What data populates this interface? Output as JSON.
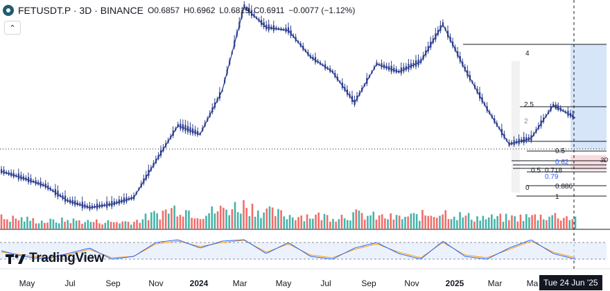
{
  "header": {
    "title": "FETUSDT.P · 3D · BINANCE",
    "open": "O0.6857",
    "high": "H0.6962",
    "low": "L0.6819",
    "close": "C0.6911",
    "change": "−0.0077 (−1.12%)",
    "symbol_icon": "fet-logo-icon",
    "collapse_icon": "chevron-up-icon"
  },
  "watermark": "TradingView",
  "crosshair_date": "Tue 24 Jun '25",
  "colors": {
    "price_line": "#2a3c8f",
    "volume_up": "#26a69a",
    "volume_down": "#ef5350",
    "stoch_k": "#2962ff",
    "stoch_d": "#ff9800",
    "fib_zone": "#bbd3f2",
    "pink_zone": "#f8d3d6"
  },
  "fib_labels": [
    {
      "text": "4",
      "level": 4
    },
    {
      "text": "2.5",
      "level": 2.5
    },
    {
      "text": "2",
      "level": 2
    },
    {
      "text": "0",
      "level": 0
    },
    {
      "text": "0.5",
      "level": 0.5
    },
    {
      "text": "0.62",
      "level": 0.62
    },
    {
      "text": "0.5",
      "level": 0.5
    },
    {
      "text": "0.718",
      "level": 0.718
    },
    {
      "text": "0.79",
      "level": 0.79
    },
    {
      "text": "0",
      "level": 0
    },
    {
      "text": "0.886",
      "level": 0.886
    },
    {
      "text": "1",
      "level": 1
    }
  ],
  "pane_label": "3D",
  "chart_data": {
    "type": "line",
    "symbol": "FETUSDT.P",
    "timeframe": "3D",
    "x_ticks": [
      "May",
      "Jul",
      "Sep",
      "Nov",
      "2024",
      "Mar",
      "May",
      "Jul",
      "Sep",
      "Nov",
      "2025",
      "Mar",
      "Ma"
    ],
    "x_tick_bold": [
      false,
      false,
      false,
      false,
      true,
      false,
      false,
      false,
      false,
      false,
      true,
      false,
      false
    ],
    "price_series": {
      "name": "FETUSDT.P",
      "x": [
        "2023-04-01",
        "2023-05-01",
        "2023-06-01",
        "2023-07-01",
        "2023-08-01",
        "2023-09-01",
        "2023-10-01",
        "2023-11-01",
        "2023-12-01",
        "2024-01-01",
        "2024-02-01",
        "2024-03-01",
        "2024-04-01",
        "2024-05-01",
        "2024-06-01",
        "2024-07-01",
        "2024-08-01",
        "2024-09-01",
        "2024-10-01",
        "2024-11-01",
        "2024-12-01",
        "2025-01-01",
        "2025-02-01",
        "2025-03-01",
        "2025-04-01",
        "2025-05-01",
        "2025-06-01"
      ],
      "y": [
        0.33,
        0.3,
        0.27,
        0.22,
        0.2,
        0.21,
        0.23,
        0.38,
        0.62,
        0.55,
        1.0,
        3.2,
        2.4,
        2.3,
        1.6,
        1.3,
        0.85,
        1.45,
        1.3,
        1.5,
        2.5,
        1.35,
        0.78,
        0.48,
        0.52,
        0.82,
        0.69
      ]
    },
    "volume": [
      0.45,
      0.4,
      0.3,
      0.35,
      0.3,
      0.28,
      0.3,
      0.6,
      0.9,
      0.6,
      0.8,
      1.0,
      0.7,
      0.55,
      0.55,
      0.5,
      0.6,
      0.5,
      0.45,
      0.55,
      0.7,
      0.5,
      0.45,
      0.45,
      0.5,
      0.55,
      0.45
    ],
    "stoch_rsi": {
      "k": [
        50,
        30,
        20,
        40,
        60,
        20,
        30,
        80,
        90,
        60,
        85,
        90,
        40,
        80,
        30,
        20,
        60,
        80,
        40,
        20,
        85,
        30,
        20,
        60,
        90,
        40,
        20
      ],
      "d": [
        45,
        35,
        25,
        35,
        55,
        25,
        30,
        75,
        85,
        65,
        80,
        88,
        45,
        75,
        35,
        25,
        55,
        75,
        45,
        25,
        80,
        35,
        25,
        55,
        85,
        45,
        25
      ],
      "range": [
        0,
        100
      ]
    },
    "ylim": [
      0.15,
      3.5
    ],
    "log_scale": true,
    "grid": false
  }
}
